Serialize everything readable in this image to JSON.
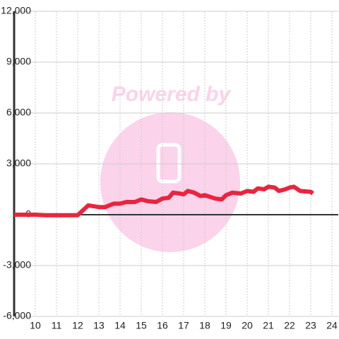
{
  "chart_data": {
    "type": "line",
    "watermark": "Powered by",
    "x": [
      9,
      10,
      10.5,
      11,
      12,
      12.5,
      13,
      13.3,
      13.7,
      14,
      14.3,
      14.7,
      15,
      15.3,
      15.7,
      16,
      16.3,
      16.5,
      16.8,
      17,
      17.2,
      17.5,
      17.8,
      18,
      18.5,
      18.8,
      19,
      19.3,
      19.7,
      20,
      20.3,
      20.5,
      20.8,
      21,
      21.3,
      21.5,
      21.8,
      22,
      22.2,
      22.5,
      23,
      23.1
    ],
    "series": [
      {
        "color": "#e8253f",
        "values": [
          0,
          0,
          -30,
          -30,
          -30,
          550,
          450,
          450,
          650,
          650,
          750,
          750,
          900,
          800,
          750,
          950,
          1000,
          1300,
          1250,
          1200,
          1400,
          1300,
          1100,
          1150,
          950,
          900,
          1150,
          1300,
          1250,
          1400,
          1350,
          1550,
          1500,
          1650,
          1600,
          1400,
          1500,
          1600,
          1650,
          1400,
          1350,
          1250
        ]
      }
    ],
    "xlim": [
      9,
      24.3
    ],
    "xticks": [
      10,
      11,
      12,
      13,
      14,
      15,
      16,
      17,
      18,
      19,
      20,
      21,
      22,
      23,
      24
    ],
    "ylim": [
      -6000,
      12000
    ],
    "yticks": [
      {
        "value": -6000,
        "label": "-6,000"
      },
      {
        "value": -3000,
        "label": "-3,000"
      },
      0,
      {
        "value": 3000,
        "label": "3,000"
      },
      {
        "value": 6000,
        "label": "6,000"
      },
      {
        "value": 9000,
        "label": "9,000"
      },
      {
        "value": 12000,
        "label": "12,000"
      }
    ],
    "grid": true
  }
}
